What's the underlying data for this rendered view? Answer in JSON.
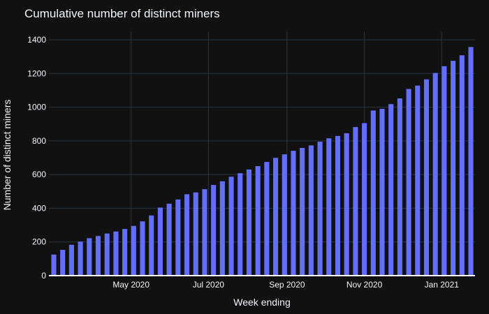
{
  "chart_data": {
    "type": "bar",
    "title": "Cumulative number of distinct miners",
    "xlabel": "Week ending",
    "ylabel": "Number of distinct miners",
    "ylim": [
      0,
      1400
    ],
    "yticks": [
      "0",
      "200",
      "400",
      "600",
      "800",
      "1000",
      "1200",
      "1400"
    ],
    "xticks": [
      {
        "label": "May 2020",
        "date": "2020-05-01"
      },
      {
        "label": "Jul 2020",
        "date": "2020-07-01"
      },
      {
        "label": "Sep 2020",
        "date": "2020-09-01"
      },
      {
        "label": "Nov 2020",
        "date": "2020-11-01"
      },
      {
        "label": "Jan 2021",
        "date": "2021-01-01"
      }
    ],
    "x": [
      "2020-03-01",
      "2020-03-08",
      "2020-03-15",
      "2020-03-22",
      "2020-03-29",
      "2020-04-05",
      "2020-04-12",
      "2020-04-19",
      "2020-04-26",
      "2020-05-03",
      "2020-05-10",
      "2020-05-17",
      "2020-05-24",
      "2020-05-31",
      "2020-06-07",
      "2020-06-14",
      "2020-06-21",
      "2020-06-28",
      "2020-07-05",
      "2020-07-12",
      "2020-07-19",
      "2020-07-26",
      "2020-08-02",
      "2020-08-09",
      "2020-08-16",
      "2020-08-23",
      "2020-08-30",
      "2020-09-06",
      "2020-09-13",
      "2020-09-20",
      "2020-09-27",
      "2020-10-04",
      "2020-10-11",
      "2020-10-18",
      "2020-10-25",
      "2020-11-01",
      "2020-11-08",
      "2020-11-15",
      "2020-11-22",
      "2020-11-29",
      "2020-12-06",
      "2020-12-13",
      "2020-12-20",
      "2020-12-27",
      "2021-01-03",
      "2021-01-10",
      "2021-01-17",
      "2021-01-24"
    ],
    "values": [
      125,
      153,
      183,
      202,
      222,
      235,
      250,
      262,
      277,
      295,
      322,
      357,
      404,
      427,
      452,
      483,
      494,
      513,
      538,
      560,
      587,
      608,
      630,
      650,
      675,
      699,
      720,
      741,
      758,
      773,
      795,
      815,
      829,
      845,
      882,
      905,
      980,
      990,
      1018,
      1052,
      1108,
      1128,
      1165,
      1203,
      1243,
      1275,
      1308,
      1357
    ]
  }
}
